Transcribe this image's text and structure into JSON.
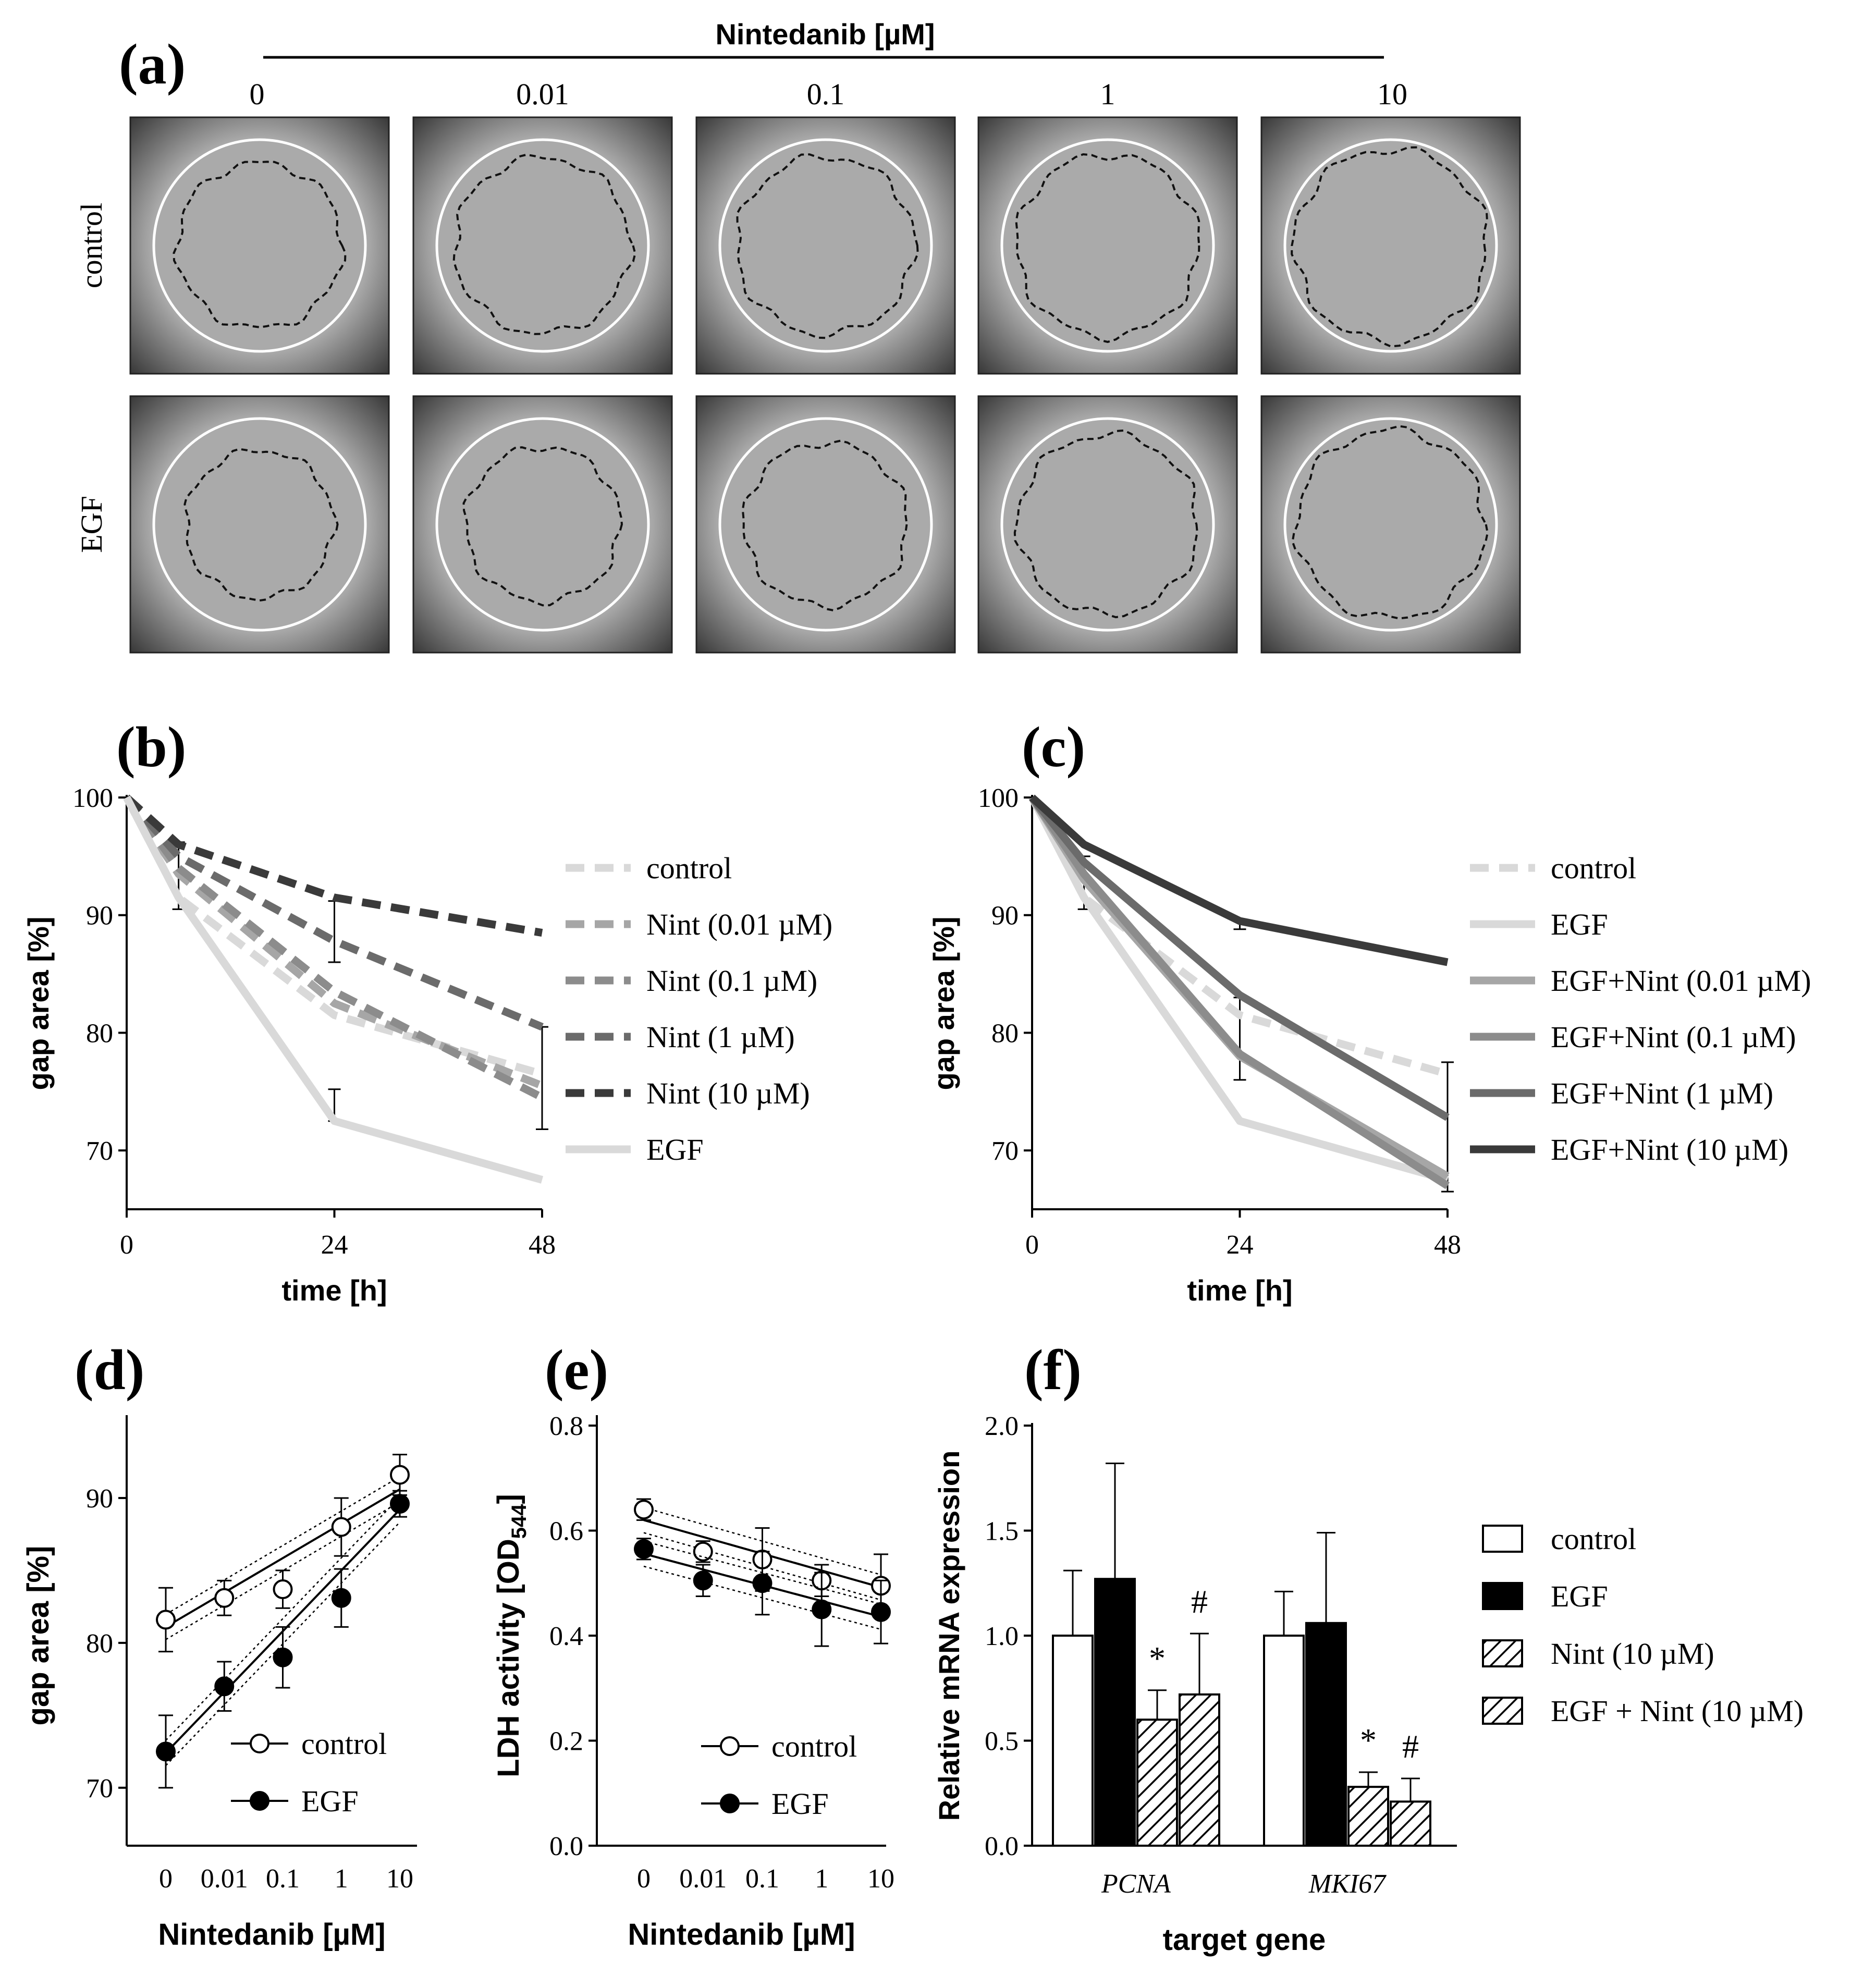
{
  "panel_a": {
    "panel_label": "(a)",
    "header": "Nintedanib [µM]",
    "concentrations": [
      "0",
      "0.01",
      "0.1",
      "1",
      "10"
    ],
    "row_labels": [
      "control",
      "EGF"
    ]
  },
  "chart_data": [
    {
      "id": "b",
      "panel_label": "(b)",
      "type": "line",
      "xlabel": "time [h]",
      "ylabel": "gap area [%]",
      "x_ticks": [
        0,
        24,
        48
      ],
      "y_ticks": [
        70,
        80,
        90,
        100
      ],
      "xlim": [
        0,
        48
      ],
      "ylim": [
        65,
        100
      ],
      "legend_position": "right",
      "series": [
        {
          "name": "control",
          "color": "#d9d9d9",
          "dash": true,
          "x": [
            0,
            6,
            24,
            48
          ],
          "y": [
            100,
            91.5,
            81.5,
            76.5
          ]
        },
        {
          "name": "Nint (0.01 µM)",
          "color": "#a6a6a6",
          "dash": true,
          "x": [
            0,
            6,
            24,
            48
          ],
          "y": [
            100,
            93.5,
            82.5,
            75.5
          ]
        },
        {
          "name": "Nint (0.1 µM)",
          "color": "#8c8c8c",
          "dash": true,
          "x": [
            0,
            6,
            24,
            48
          ],
          "y": [
            100,
            94,
            83.5,
            74.5
          ]
        },
        {
          "name": "Nint (1 µM)",
          "color": "#6b6b6b",
          "dash": true,
          "x": [
            0,
            6,
            24,
            48
          ],
          "y": [
            100,
            95,
            87.8,
            80.5
          ]
        },
        {
          "name": "Nint (10 µM)",
          "color": "#3a3a3a",
          "dash": true,
          "x": [
            0,
            6,
            24,
            48
          ],
          "y": [
            100,
            96,
            91.5,
            88.5
          ]
        },
        {
          "name": "EGF",
          "color": "#d9d9d9",
          "dash": false,
          "x": [
            0,
            6,
            24,
            48
          ],
          "y": [
            100,
            91.5,
            72.5,
            67.5
          ]
        }
      ],
      "error_bars": [
        {
          "x": 6,
          "y": 93.3,
          "lo": 90.5,
          "hi": 96.2
        },
        {
          "x": 24,
          "y": 72.5,
          "lo": 72.5,
          "hi": 75.2
        },
        {
          "x": 24,
          "y": 88.5,
          "lo": 86,
          "hi": 91.2
        },
        {
          "x": 48,
          "y": 76,
          "lo": 71.8,
          "hi": 80.5
        }
      ]
    },
    {
      "id": "c",
      "panel_label": "(c)",
      "type": "line",
      "xlabel": "time [h]",
      "ylabel": "gap area [%]",
      "x_ticks": [
        0,
        24,
        48
      ],
      "y_ticks": [
        70,
        80,
        90,
        100
      ],
      "xlim": [
        0,
        48
      ],
      "ylim": [
        65,
        100
      ],
      "legend_position": "right",
      "series": [
        {
          "name": "control",
          "color": "#d9d9d9",
          "dash": true,
          "x": [
            0,
            6,
            24,
            48
          ],
          "y": [
            100,
            91.5,
            81.5,
            76.5
          ]
        },
        {
          "name": "EGF",
          "color": "#d9d9d9",
          "dash": false,
          "x": [
            0,
            6,
            24,
            48
          ],
          "y": [
            100,
            91.5,
            72.5,
            67.5
          ]
        },
        {
          "name": "EGF+Nint (0.01 µM)",
          "color": "#a6a6a6",
          "dash": false,
          "x": [
            0,
            6,
            24,
            48
          ],
          "y": [
            100,
            93,
            78,
            67.8
          ]
        },
        {
          "name": "EGF+Nint (0.1 µM)",
          "color": "#8c8c8c",
          "dash": false,
          "x": [
            0,
            6,
            24,
            48
          ],
          "y": [
            100,
            93.5,
            78.2,
            67
          ]
        },
        {
          "name": "EGF+Nint (1 µM)",
          "color": "#6b6b6b",
          "dash": false,
          "x": [
            0,
            6,
            24,
            48
          ],
          "y": [
            100,
            94.5,
            83.2,
            72.8
          ]
        },
        {
          "name": "EGF+Nint (10 µM)",
          "color": "#3a3a3a",
          "dash": false,
          "x": [
            0,
            6,
            24,
            48
          ],
          "y": [
            100,
            96,
            89.5,
            86
          ]
        }
      ],
      "error_bars": [
        {
          "x": 6,
          "y": 92.5,
          "lo": 90.5,
          "hi": 95
        },
        {
          "x": 24,
          "y": 79.5,
          "lo": 76,
          "hi": 83
        },
        {
          "x": 24,
          "y": 89.5,
          "lo": 88.8,
          "hi": 89.5
        },
        {
          "x": 48,
          "y": 72,
          "lo": 66.5,
          "hi": 77.5
        }
      ]
    },
    {
      "id": "d",
      "panel_label": "(d)",
      "type": "scatter",
      "xlabel": "Nintedanib [µM]",
      "ylabel": "gap area [%]",
      "categories": [
        "0",
        "0.01",
        "0.1",
        "1",
        "10"
      ],
      "y_ticks": [
        70,
        80,
        90
      ],
      "ylim": [
        66,
        95
      ],
      "legend_position": "bottom-right",
      "series": [
        {
          "name": "control",
          "marker": "open",
          "values": [
            81.6,
            83.1,
            83.7,
            88.0,
            91.6
          ],
          "err": [
            2.2,
            1.2,
            1.3,
            2.0,
            1.4
          ],
          "fit": [
            81.1,
            83.5,
            85.9,
            88.2,
            90.6
          ]
        },
        {
          "name": "EGF",
          "marker": "filled",
          "values": [
            72.5,
            77.0,
            79.0,
            83.1,
            89.6
          ],
          "err": [
            2.5,
            1.7,
            2.1,
            2.0,
            0.9
          ],
          "fit": [
            72.4,
            76.5,
            80.7,
            85.0,
            89.2
          ]
        }
      ]
    },
    {
      "id": "e",
      "panel_label": "(e)",
      "type": "scatter",
      "xlabel": "Nintedanib [µM]",
      "ylabel": "LDH activity [OD544]",
      "ylabel_main": "LDH activity [OD",
      "ylabel_sub": "544",
      "ylabel_end": "]",
      "categories": [
        "0",
        "0.01",
        "0.1",
        "1",
        "10"
      ],
      "y_ticks": [
        "0.0",
        "0.2",
        "0.4",
        "0.6",
        "0.8"
      ],
      "ylim": [
        0,
        0.8
      ],
      "legend_position": "bottom-right",
      "series": [
        {
          "name": "control",
          "marker": "open",
          "values": [
            0.64,
            0.56,
            0.545,
            0.505,
            0.495
          ],
          "err": [
            0.02,
            0.02,
            0.06,
            0.03,
            0.06
          ],
          "fit": [
            0.62,
            0.588,
            0.556,
            0.524,
            0.492
          ]
        },
        {
          "name": "EGF",
          "marker": "filled",
          "values": [
            0.565,
            0.505,
            0.5,
            0.45,
            0.445
          ],
          "err": [
            0.02,
            0.03,
            0.06,
            0.07,
            0.06
          ],
          "fit": [
            0.556,
            0.526,
            0.496,
            0.466,
            0.436
          ]
        }
      ]
    },
    {
      "id": "f",
      "panel_label": "(f)",
      "type": "bar",
      "xlabel": "target gene",
      "ylabel": "Relative mRNA expression",
      "categories": [
        "PCNA",
        "MKI67"
      ],
      "y_ticks": [
        "0.0",
        "0.5",
        "1.0",
        "1.5",
        "2.0"
      ],
      "ylim": [
        0,
        2
      ],
      "legend_position": "right",
      "series": [
        {
          "name": "control",
          "fill": "white",
          "values": [
            1.0,
            1.0
          ],
          "err": [
            0.31,
            0.21
          ]
        },
        {
          "name": "EGF",
          "fill": "black",
          "values": [
            1.27,
            1.06
          ],
          "err": [
            0.55,
            0.43
          ]
        },
        {
          "name": "Nint (10 µM)",
          "fill": "hatch",
          "values": [
            0.6,
            0.28
          ],
          "err": [
            0.14,
            0.07
          ]
        },
        {
          "name": "EGF + Nint (10 µM)",
          "fill": "hatch",
          "values": [
            0.72,
            0.21
          ],
          "err": [
            0.29,
            0.11
          ]
        }
      ],
      "annotations": [
        {
          "category": "PCNA",
          "series": "Nint (10 µM)",
          "text": "*"
        },
        {
          "category": "PCNA",
          "series": "EGF + Nint (10 µM)",
          "text": "#"
        },
        {
          "category": "MKI67",
          "series": "Nint (10 µM)",
          "text": "*"
        },
        {
          "category": "MKI67",
          "series": "EGF + Nint (10 µM)",
          "text": "#"
        }
      ]
    }
  ]
}
